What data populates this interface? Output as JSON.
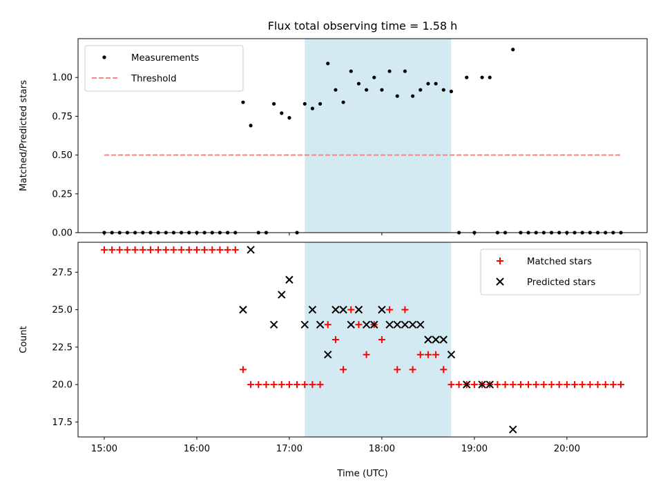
{
  "title": "Flux total observing time = 1.58 h",
  "xlabel": "Time (UTC)",
  "x_tick_labels": [
    "15:00",
    "16:00",
    "17:00",
    "18:00",
    "19:00",
    "20:00"
  ],
  "chart_data": [
    {
      "type": "scatter",
      "ylabel": "Matched/Predicted stars",
      "xlim": [
        "14:43",
        "20:52"
      ],
      "ylim": [
        0,
        1.25
      ],
      "y_ticks": [
        0.0,
        0.25,
        0.5,
        0.75,
        1.0
      ],
      "y_tick_labels": [
        "0.00",
        "0.25",
        "0.50",
        "0.75",
        "1.00"
      ],
      "legend_position": "upper left",
      "highlight_span": [
        "17:10",
        "18:45"
      ],
      "highlight_color": "#add8e6",
      "series": [
        {
          "name": "Measurements",
          "kind": "dots",
          "color": "#000000",
          "points": [
            [
              "15:00",
              0
            ],
            [
              "15:05",
              0
            ],
            [
              "15:10",
              0
            ],
            [
              "15:15",
              0
            ],
            [
              "15:20",
              0
            ],
            [
              "15:25",
              0
            ],
            [
              "15:30",
              0
            ],
            [
              "15:35",
              0
            ],
            [
              "15:40",
              0
            ],
            [
              "15:45",
              0
            ],
            [
              "15:50",
              0
            ],
            [
              "15:55",
              0
            ],
            [
              "16:00",
              0
            ],
            [
              "16:05",
              0
            ],
            [
              "16:10",
              0
            ],
            [
              "16:15",
              0
            ],
            [
              "16:20",
              0
            ],
            [
              "16:25",
              0
            ],
            [
              "16:30",
              0.84
            ],
            [
              "16:35",
              0.69
            ],
            [
              "16:40",
              0
            ],
            [
              "16:45",
              0
            ],
            [
              "16:50",
              0.83
            ],
            [
              "16:55",
              0.77
            ],
            [
              "17:00",
              0.74
            ],
            [
              "17:05",
              0
            ],
            [
              "17:10",
              0.83
            ],
            [
              "17:15",
              0.8
            ],
            [
              "17:20",
              0.83
            ],
            [
              "17:25",
              1.09
            ],
            [
              "17:30",
              0.92
            ],
            [
              "17:35",
              0.84
            ],
            [
              "17:40",
              1.04
            ],
            [
              "17:45",
              0.96
            ],
            [
              "17:50",
              0.92
            ],
            [
              "17:55",
              1.0
            ],
            [
              "18:00",
              0.92
            ],
            [
              "18:05",
              1.04
            ],
            [
              "18:10",
              0.88
            ],
            [
              "18:15",
              1.04
            ],
            [
              "18:20",
              0.88
            ],
            [
              "18:25",
              0.92
            ],
            [
              "18:30",
              0.96
            ],
            [
              "18:35",
              0.96
            ],
            [
              "18:40",
              0.92
            ],
            [
              "18:45",
              0.91
            ],
            [
              "18:50",
              0
            ],
            [
              "18:55",
              1.0
            ],
            [
              "19:00",
              0
            ],
            [
              "19:05",
              1.0
            ],
            [
              "19:10",
              1.0
            ],
            [
              "19:15",
              0
            ],
            [
              "19:20",
              0
            ],
            [
              "19:25",
              1.18
            ],
            [
              "19:30",
              0
            ],
            [
              "19:35",
              0
            ],
            [
              "19:40",
              0
            ],
            [
              "19:45",
              0
            ],
            [
              "19:50",
              0
            ],
            [
              "19:55",
              0
            ],
            [
              "20:00",
              0
            ],
            [
              "20:05",
              0
            ],
            [
              "20:10",
              0
            ],
            [
              "20:15",
              0
            ],
            [
              "20:20",
              0
            ],
            [
              "20:25",
              0
            ],
            [
              "20:30",
              0
            ],
            [
              "20:35",
              0
            ]
          ]
        },
        {
          "name": "Threshold",
          "kind": "dashed-line",
          "color": "#ff7f7f",
          "points": [
            [
              "15:00",
              0.5
            ],
            [
              "20:35",
              0.5
            ]
          ]
        }
      ]
    },
    {
      "type": "scatter",
      "ylabel": "Count",
      "xlim": [
        "14:43",
        "20:52"
      ],
      "ylim": [
        16.5,
        29.5
      ],
      "y_ticks": [
        17.5,
        20.0,
        22.5,
        25.0,
        27.5
      ],
      "y_tick_labels": [
        "17.5",
        "20.0",
        "22.5",
        "25.0",
        "27.5"
      ],
      "legend_position": "upper right",
      "highlight_span": [
        "17:10",
        "18:45"
      ],
      "highlight_color": "#add8e6",
      "series": [
        {
          "name": "Matched stars",
          "kind": "plus",
          "color": "#ff0000",
          "points": [
            [
              "15:00",
              29
            ],
            [
              "15:05",
              29
            ],
            [
              "15:10",
              29
            ],
            [
              "15:15",
              29
            ],
            [
              "15:20",
              29
            ],
            [
              "15:25",
              29
            ],
            [
              "15:30",
              29
            ],
            [
              "15:35",
              29
            ],
            [
              "15:40",
              29
            ],
            [
              "15:45",
              29
            ],
            [
              "15:50",
              29
            ],
            [
              "15:55",
              29
            ],
            [
              "16:00",
              29
            ],
            [
              "16:05",
              29
            ],
            [
              "16:10",
              29
            ],
            [
              "16:15",
              29
            ],
            [
              "16:20",
              29
            ],
            [
              "16:25",
              29
            ],
            [
              "16:30",
              21
            ],
            [
              "16:35",
              20
            ],
            [
              "16:40",
              20
            ],
            [
              "16:45",
              20
            ],
            [
              "16:50",
              20
            ],
            [
              "16:55",
              20
            ],
            [
              "17:00",
              20
            ],
            [
              "17:05",
              20
            ],
            [
              "17:10",
              20
            ],
            [
              "17:15",
              20
            ],
            [
              "17:20",
              20
            ],
            [
              "17:25",
              24
            ],
            [
              "17:30",
              23
            ],
            [
              "17:35",
              21
            ],
            [
              "17:40",
              25
            ],
            [
              "17:45",
              24
            ],
            [
              "17:50",
              22
            ],
            [
              "17:55",
              24
            ],
            [
              "18:00",
              23
            ],
            [
              "18:05",
              25
            ],
            [
              "18:10",
              21
            ],
            [
              "18:15",
              25
            ],
            [
              "18:20",
              21
            ],
            [
              "18:25",
              22
            ],
            [
              "18:30",
              22
            ],
            [
              "18:35",
              22
            ],
            [
              "18:40",
              21
            ],
            [
              "18:45",
              20
            ],
            [
              "18:50",
              20
            ],
            [
              "18:55",
              20
            ],
            [
              "19:00",
              20
            ],
            [
              "19:05",
              20
            ],
            [
              "19:10",
              20
            ],
            [
              "19:15",
              20
            ],
            [
              "19:20",
              20
            ],
            [
              "19:25",
              20
            ],
            [
              "19:30",
              20
            ],
            [
              "19:35",
              20
            ],
            [
              "19:40",
              20
            ],
            [
              "19:45",
              20
            ],
            [
              "19:50",
              20
            ],
            [
              "19:55",
              20
            ],
            [
              "20:00",
              20
            ],
            [
              "20:05",
              20
            ],
            [
              "20:10",
              20
            ],
            [
              "20:15",
              20
            ],
            [
              "20:20",
              20
            ],
            [
              "20:25",
              20
            ],
            [
              "20:30",
              20
            ],
            [
              "20:35",
              20
            ]
          ]
        },
        {
          "name": "Predicted stars",
          "kind": "x",
          "color": "#000000",
          "points": [
            [
              "16:30",
              25
            ],
            [
              "16:35",
              29
            ],
            [
              "16:50",
              24
            ],
            [
              "16:55",
              26
            ],
            [
              "17:00",
              27
            ],
            [
              "17:10",
              24
            ],
            [
              "17:15",
              25
            ],
            [
              "17:20",
              24
            ],
            [
              "17:25",
              22
            ],
            [
              "17:30",
              25
            ],
            [
              "17:35",
              25
            ],
            [
              "17:40",
              24
            ],
            [
              "17:45",
              25
            ],
            [
              "17:50",
              24
            ],
            [
              "17:55",
              24
            ],
            [
              "18:00",
              25
            ],
            [
              "18:05",
              24
            ],
            [
              "18:10",
              24
            ],
            [
              "18:15",
              24
            ],
            [
              "18:20",
              24
            ],
            [
              "18:25",
              24
            ],
            [
              "18:30",
              23
            ],
            [
              "18:35",
              23
            ],
            [
              "18:40",
              23
            ],
            [
              "18:45",
              22
            ],
            [
              "18:55",
              20
            ],
            [
              "19:05",
              20
            ],
            [
              "19:10",
              20
            ],
            [
              "19:25",
              17
            ]
          ]
        }
      ]
    }
  ]
}
